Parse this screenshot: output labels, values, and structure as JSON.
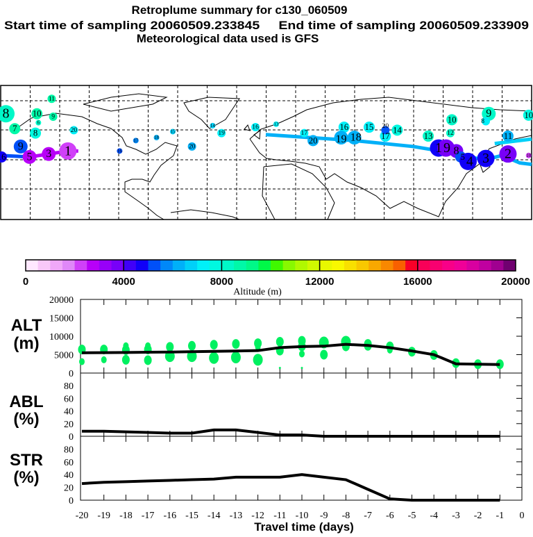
{
  "header": {
    "title": "Retroplume summary for c130_060509",
    "sampling": "Start time of sampling 20060509.233845     End time of sampling 20060509.233909",
    "met": "Meteorological data used is GFS"
  },
  "map": {
    "markers": [
      {
        "day": "8",
        "lon": -176,
        "lat": 71,
        "alt": 8200,
        "w": 5
      },
      {
        "day": "7",
        "lon": -170,
        "lat": 61,
        "alt": 8600,
        "w": 3
      },
      {
        "day": "11",
        "lon": -145,
        "lat": 81,
        "alt": 8800,
        "w": 2
      },
      {
        "day": "10",
        "lon": -155,
        "lat": 71,
        "alt": 8600,
        "w": 3
      },
      {
        "day": "9",
        "lon": -144,
        "lat": 69,
        "alt": 8500,
        "w": 2
      },
      {
        "day": "6",
        "lon": -154,
        "lat": 65,
        "alt": 8300,
        "w": 1
      },
      {
        "day": "8",
        "lon": -156,
        "lat": 58,
        "alt": 7900,
        "w": 3
      },
      {
        "day": "9",
        "lon": -166,
        "lat": 49,
        "alt": 5200,
        "w": 4
      },
      {
        "day": "20",
        "lon": -130,
        "lat": 60,
        "alt": 7000,
        "w": 2
      },
      {
        "day": "1",
        "lon": -134,
        "lat": 46,
        "alt": 2200,
        "w": 5
      },
      {
        "day": "3",
        "lon": -147,
        "lat": 44,
        "alt": 2700,
        "w": 4
      },
      {
        "day": "5",
        "lon": -160,
        "lat": 42,
        "alt": 2700,
        "w": 4
      },
      {
        "day": "16",
        "lon": -179,
        "lat": 42,
        "alt": 4800,
        "w": 3
      },
      {
        "day": "17",
        "lon": -88,
        "lat": 53,
        "alt": 5800,
        "w": 1
      },
      {
        "day": "18",
        "lon": -74,
        "lat": 55,
        "alt": 6200,
        "w": 1
      },
      {
        "day": "15",
        "lon": -63,
        "lat": 59,
        "alt": 6500,
        "w": 1
      },
      {
        "day": "20",
        "lon": -50,
        "lat": 49,
        "alt": 6200,
        "w": 2
      },
      {
        "day": "14",
        "lon": -36,
        "lat": 63,
        "alt": 6800,
        "w": 1
      },
      {
        "day": "19",
        "lon": -30,
        "lat": 58,
        "alt": 7200,
        "w": 2
      },
      {
        "day": "16",
        "lon": -7,
        "lat": 62,
        "alt": 7300,
        "w": 2
      },
      {
        "day": "16",
        "lon": -99,
        "lat": 46,
        "alt": 5200,
        "w": 1
      },
      {
        "day": "13",
        "lon": 7,
        "lat": 64,
        "alt": 7200,
        "w": 1
      },
      {
        "day": "17",
        "lon": 26,
        "lat": 58,
        "alt": 7300,
        "w": 2
      },
      {
        "day": "20",
        "lon": 32,
        "lat": 53,
        "alt": 6200,
        "w": 3
      },
      {
        "day": "16",
        "lon": 53,
        "lat": 62,
        "alt": 7200,
        "w": 3
      },
      {
        "day": "19",
        "lon": 51,
        "lat": 55,
        "alt": 6200,
        "w": 4
      },
      {
        "day": "18",
        "lon": 60,
        "lat": 55,
        "alt": 6300,
        "w": 4
      },
      {
        "day": "15",
        "lon": 70,
        "lat": 62,
        "alt": 7300,
        "w": 3
      },
      {
        "day": "17",
        "lon": 81,
        "lat": 56,
        "alt": 7200,
        "w": 3
      },
      {
        "day": "20",
        "lon": 81,
        "lat": 60,
        "alt": 5200,
        "w": 2
      },
      {
        "day": "14",
        "lon": 89,
        "lat": 60,
        "alt": 7600,
        "w": 3
      },
      {
        "day": "13",
        "lon": 110,
        "lat": 56,
        "alt": 8200,
        "w": 3
      },
      {
        "day": "10",
        "lon": 126,
        "lat": 67,
        "alt": 8400,
        "w": 3
      },
      {
        "day": "12",
        "lon": 125,
        "lat": 58,
        "alt": 8300,
        "w": 2
      },
      {
        "day": "9",
        "lon": 151,
        "lat": 71,
        "alt": 8200,
        "w": 4
      },
      {
        "day": "8",
        "lon": 149,
        "lat": 66,
        "alt": 7400,
        "w": 2
      },
      {
        "day": "11",
        "lon": 164,
        "lat": 56,
        "alt": 6000,
        "w": 3
      },
      {
        "day": "10",
        "lon": 178,
        "lat": 70,
        "alt": 7600,
        "w": 3
      },
      {
        "day": "1",
        "lon": 117,
        "lat": 48,
        "alt": 4600,
        "w": 5
      },
      {
        "day": "9",
        "lon": 122,
        "lat": 48,
        "alt": 3800,
        "w": 5
      },
      {
        "day": "8",
        "lon": 129,
        "lat": 46,
        "alt": 3600,
        "w": 4
      },
      {
        "day": "5",
        "lon": 132,
        "lat": 42,
        "alt": 5400,
        "w": 3
      },
      {
        "day": "4",
        "lon": 137,
        "lat": 39,
        "alt": 4500,
        "w": 5
      },
      {
        "day": "3",
        "lon": 149,
        "lat": 41,
        "alt": 4500,
        "w": 5
      },
      {
        "day": "2",
        "lon": 164,
        "lat": 44,
        "alt": 3700,
        "w": 5
      },
      {
        "day": "10",
        "lon": 178,
        "lat": 43,
        "alt": 2200,
        "w": 1
      }
    ],
    "tracks": [
      {
        "alt": 6400,
        "points": [
          [
            0,
            57
          ],
          [
            60,
            53
          ],
          [
            100,
            49
          ],
          [
            124,
            45
          ],
          [
            148,
            40
          ],
          [
            160,
            43
          ],
          [
            172,
            38
          ],
          [
            180,
            37
          ]
        ]
      },
      {
        "alt": 5200,
        "points": [
          [
            -180,
            43
          ],
          [
            -160,
            42
          ]
        ]
      },
      {
        "alt": 2700,
        "points": [
          [
            -160,
            42
          ],
          [
            -134,
            46
          ],
          [
            -127,
            46
          ]
        ]
      },
      {
        "alt": 6800,
        "points": [
          [
            155,
            51
          ],
          [
            180,
            54
          ]
        ]
      }
    ]
  },
  "colorbar": {
    "ticks": [
      "0",
      "4000",
      "8000",
      "12000",
      "16000",
      "20000"
    ],
    "label": "Altitude (m)",
    "range": [
      0,
      20000
    ],
    "colors": [
      "#ffe8ff",
      "#f8c8f8",
      "#f0a8f8",
      "#e088f8",
      "#d040f8",
      "#b800f8",
      "#9800f8",
      "#7800f8",
      "#4000f8",
      "#1000f8",
      "#0050f8",
      "#0088f8",
      "#00b0f8",
      "#00d0f8",
      "#00f0f8",
      "#00f8e0",
      "#00f8c8",
      "#00f8a8",
      "#00f888",
      "#00f848",
      "#40f800",
      "#88f800",
      "#b0f800",
      "#d0f800",
      "#e8f800",
      "#f8f800",
      "#f8e000",
      "#f8c800",
      "#f8a800",
      "#f88800",
      "#f86000",
      "#f80028",
      "#f80058",
      "#f80070",
      "#f80088",
      "#f00098",
      "#d800a0",
      "#c000a0",
      "#a00090",
      "#700070"
    ]
  },
  "chart_data": [
    {
      "type": "line",
      "title": "ALT",
      "ylabel": "ALT (m)",
      "xlabel": "Travel time (days)",
      "ylim": [
        0,
        20000
      ],
      "yticks": [
        "20000",
        "15000",
        "10000",
        "5000",
        "0"
      ],
      "x": [
        -20,
        -19,
        -18,
        -17,
        -16,
        -15,
        -14,
        -13,
        -12,
        -11,
        -10,
        -9,
        -8,
        -7,
        -6,
        -5,
        -4,
        -3,
        -2,
        -1
      ],
      "values": [
        5500,
        5550,
        5600,
        5650,
        5700,
        5800,
        5900,
        6000,
        6100,
        6900,
        7200,
        7300,
        7800,
        7500,
        6900,
        6000,
        5000,
        2500,
        2400,
        2300
      ],
      "scatter": [
        [
          -20,
          6400,
          2
        ],
        [
          -20,
          3100,
          1
        ],
        [
          -19,
          6400,
          2
        ],
        [
          -19,
          3600,
          1
        ],
        [
          -18,
          7400,
          1
        ],
        [
          -18,
          6250,
          2
        ],
        [
          -18,
          3600,
          2
        ],
        [
          -17,
          7400,
          1
        ],
        [
          -17,
          6400,
          2
        ],
        [
          -17,
          3500,
          2
        ],
        [
          -16,
          7100,
          2
        ],
        [
          -16,
          4600,
          3
        ],
        [
          -15,
          7400,
          2
        ],
        [
          -15,
          4600,
          3
        ],
        [
          -14,
          7700,
          2
        ],
        [
          -14,
          4100,
          3
        ],
        [
          -13,
          7900,
          2
        ],
        [
          -13,
          4250,
          3
        ],
        [
          -12,
          8100,
          2
        ],
        [
          -12,
          7100,
          1
        ],
        [
          -12,
          3600,
          3
        ],
        [
          -11,
          8500,
          2
        ],
        [
          -11,
          6100,
          2
        ],
        [
          -11,
          1400,
          0
        ],
        [
          -10,
          8750,
          2
        ],
        [
          -10,
          7250,
          2
        ],
        [
          -10,
          5200,
          1
        ],
        [
          -10,
          1400,
          0
        ],
        [
          -9,
          8300,
          3
        ],
        [
          -9,
          5000,
          2
        ],
        [
          -8,
          8500,
          3
        ],
        [
          -8,
          7250,
          2
        ],
        [
          -7,
          7900,
          2
        ],
        [
          -7,
          7400,
          2
        ],
        [
          -6,
          7250,
          2
        ],
        [
          -6,
          6250,
          1
        ],
        [
          -5,
          5800,
          2
        ],
        [
          -4,
          4900,
          2
        ],
        [
          -3,
          2700,
          2
        ],
        [
          -2,
          2400,
          2
        ],
        [
          -1,
          2400,
          2
        ]
      ],
      "scatter_color": "#00f060"
    },
    {
      "type": "line",
      "title": "ABL",
      "ylabel": "ABL (%)",
      "ylim": [
        0,
        100
      ],
      "yticks": [
        "80",
        "60",
        "40",
        "20",
        "0"
      ],
      "x": [
        -20,
        -19,
        -18,
        -17,
        -16,
        -15,
        -14,
        -13,
        -12,
        -11,
        -10,
        -9,
        -8,
        -7,
        -6,
        -5,
        -4,
        -3,
        -2,
        -1
      ],
      "values": [
        8,
        8,
        7,
        6,
        5,
        5,
        10,
        10,
        6,
        2,
        2,
        0,
        0,
        0,
        0,
        0,
        0,
        0,
        0,
        0
      ]
    },
    {
      "type": "line",
      "title": "STR",
      "ylabel": "STR (%)",
      "ylim": [
        0,
        100
      ],
      "yticks": [
        "80",
        "60",
        "40",
        "20",
        "0"
      ],
      "x": [
        -20,
        -19,
        -18,
        -17,
        -16,
        -15,
        -14,
        -13,
        -12,
        -11,
        -10,
        -9,
        -8,
        -7,
        -6,
        -5,
        -4,
        -3,
        -2,
        -1
      ],
      "values": [
        26,
        28,
        29,
        30,
        31,
        32,
        33,
        36,
        36,
        36,
        40,
        36,
        32,
        17,
        2,
        0,
        0,
        0,
        0,
        0
      ],
      "xticks": [
        "-20",
        "-19",
        "-18",
        "-17",
        "-16",
        "-15",
        "-14",
        "-13",
        "-12",
        "-11",
        "-10",
        "-9",
        "-8",
        "-7",
        "-6",
        "-5",
        "-4",
        "-3",
        "-2",
        "-1",
        "0"
      ],
      "xlim": [
        -20,
        0
      ]
    }
  ],
  "panels": {
    "alt_label1": "ALT",
    "alt_label2": "(m)",
    "abl_label1": "ABL",
    "abl_label2": "(%)",
    "str_label1": "STR",
    "str_label2": "(%)",
    "xlabel": "Travel time (days)"
  }
}
